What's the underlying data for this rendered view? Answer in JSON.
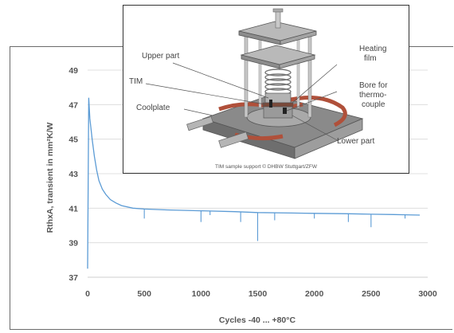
{
  "chart_data": {
    "type": "line",
    "xlabel": "Cycles -40 ... +80°C",
    "ylabel": "RthxA, transient in mm²K/W",
    "xlim": [
      0,
      3000
    ],
    "ylim": [
      37,
      49
    ],
    "x_ticks": [
      "0",
      "500",
      "1000",
      "1500",
      "2000",
      "2500",
      "3000"
    ],
    "y_ticks": [
      "37",
      "39",
      "41",
      "43",
      "45",
      "47",
      "49"
    ],
    "grid": true,
    "line_color": "#5b9bd5",
    "series": [
      {
        "x": [
          0,
          10,
          20,
          40,
          60,
          80,
          100,
          130,
          160,
          200,
          250,
          300,
          400,
          500,
          700,
          1000,
          1300,
          1500,
          1800,
          2000,
          2300,
          2500,
          2700,
          2930
        ],
        "y": [
          37.5,
          47.4,
          46.2,
          45.0,
          44.0,
          43.2,
          42.6,
          42.1,
          41.8,
          41.5,
          41.3,
          41.15,
          41.0,
          40.95,
          40.9,
          40.85,
          40.8,
          40.75,
          40.72,
          40.7,
          40.68,
          40.65,
          40.63,
          40.6
        ]
      }
    ],
    "dips": [
      {
        "x": 500,
        "y": 40.4
      },
      {
        "x": 1000,
        "y": 40.2
      },
      {
        "x": 1080,
        "y": 40.6
      },
      {
        "x": 1350,
        "y": 40.2
      },
      {
        "x": 1500,
        "y": 39.1
      },
      {
        "x": 1650,
        "y": 40.3
      },
      {
        "x": 2000,
        "y": 40.4
      },
      {
        "x": 2300,
        "y": 40.2
      },
      {
        "x": 2500,
        "y": 39.9
      },
      {
        "x": 2800,
        "y": 40.4
      }
    ]
  },
  "inset": {
    "labels": {
      "upper_part": "Upper part",
      "tim": "TIM",
      "coolplate": "Coolplate",
      "heating_film_1": "Heating",
      "heating_film_2": "film",
      "bore_1": "Bore for",
      "bore_2": "thermo-",
      "bore_3": "couple",
      "lower_part": "Lower part"
    },
    "credit": "TIM sample support © DHBW Stuttgart/ZFW"
  }
}
